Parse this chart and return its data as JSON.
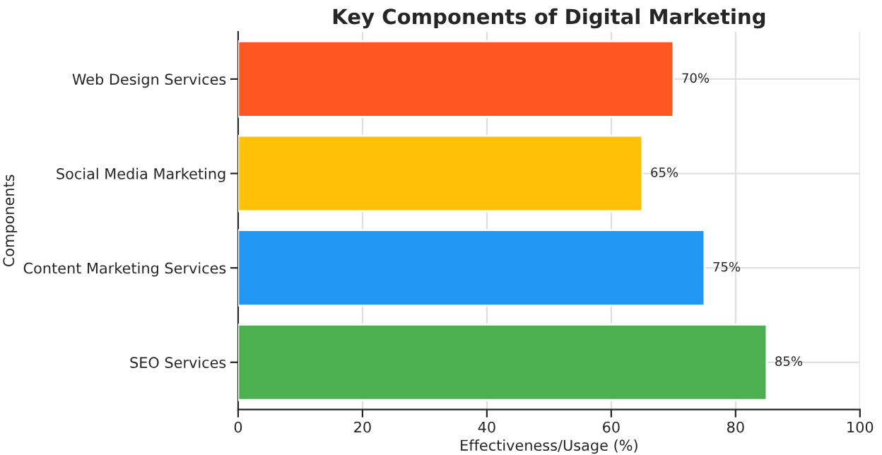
{
  "chart_data": {
    "type": "bar",
    "orientation": "horizontal",
    "title": "Key Components of Digital Marketing",
    "xlabel": "Effectiveness/Usage (%)",
    "ylabel": "Components",
    "categories": [
      "Web Design Services",
      "Social Media Marketing",
      "Content Marketing Services",
      "SEO Services"
    ],
    "values": [
      70,
      65,
      75,
      85
    ],
    "colors": [
      "#ff5722",
      "#ffc107",
      "#2196f3",
      "#4caf50"
    ],
    "value_labels": [
      "70%",
      "65%",
      "75%",
      "85%"
    ],
    "xlim": [
      0,
      100
    ],
    "xticks": [
      0,
      20,
      40,
      60,
      80,
      100
    ],
    "grid": true
  }
}
